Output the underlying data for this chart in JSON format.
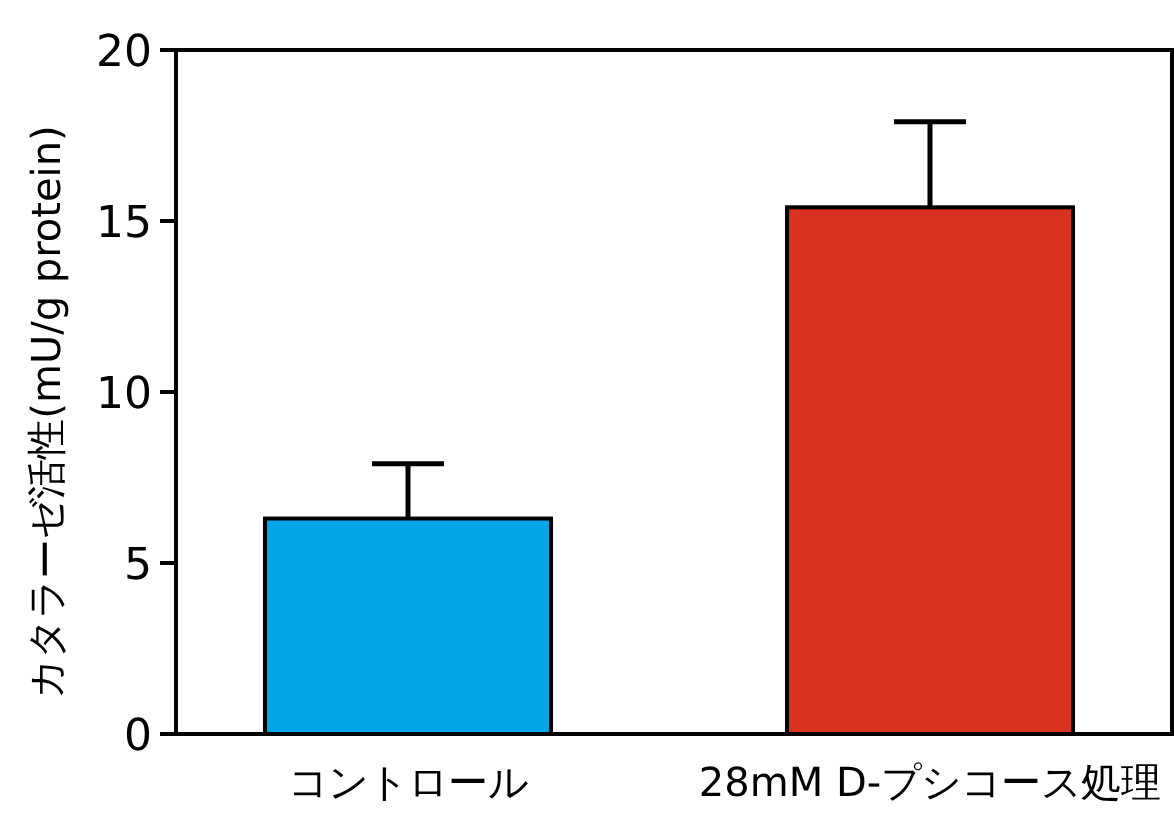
{
  "chart_data": {
    "type": "bar",
    "ylabel": "カタラーゼ活性(mU/g protein)",
    "categories": [
      "コントロール",
      "28mM D-プシコース処理"
    ],
    "values": [
      6.3,
      15.4
    ],
    "colors": [
      "#00a6e6",
      "#d93320"
    ],
    "errors": [
      [
        6.3,
        7.9
      ],
      [
        15.4,
        17.9
      ]
    ],
    "ylim": [
      0,
      20
    ],
    "yticks": [
      0,
      5,
      10,
      15,
      20
    ],
    "grid": false
  }
}
